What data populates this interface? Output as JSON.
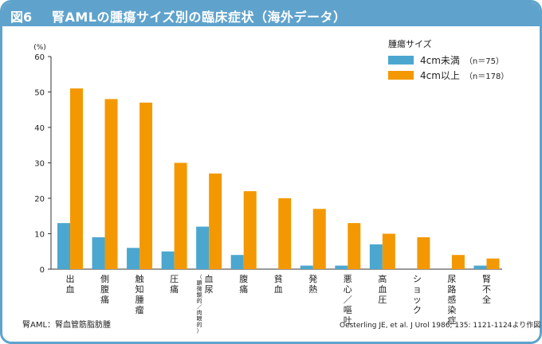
{
  "figure_label": "図6",
  "title": "腎AMLの腫瘍サイズ別の臨床症状（海外データ）",
  "colors": {
    "frame": "#5fa3cc",
    "small": "#4ba7d0",
    "large": "#f39800",
    "axis": "#333333"
  },
  "legend": {
    "title": "腫瘍サイズ",
    "items": [
      {
        "label": "4cm未満",
        "n": "（n＝75）",
        "color": "#4ba7d0"
      },
      {
        "label": "4cm以上",
        "n": "（n＝178）",
        "color": "#f39800"
      }
    ]
  },
  "footnote": "腎AML：腎血管筋脂肪腫",
  "source": "Oesterling JE, et al. J Urol 1986; 135: 1121-1124より作図",
  "chart_data": {
    "type": "bar",
    "ylabel": "(%)",
    "ylim": [
      0,
      60
    ],
    "yticks": [
      "0",
      "10",
      "20",
      "30",
      "40",
      "50",
      "60"
    ],
    "categories": [
      {
        "label": "出血"
      },
      {
        "label": "側腹痛"
      },
      {
        "label": "触知腫瘤"
      },
      {
        "label": "圧痛"
      },
      {
        "label": "血尿",
        "sub": "（顕微鏡的／肉眼的）"
      },
      {
        "label": "腹痛"
      },
      {
        "label": "貧血"
      },
      {
        "label": "発熱"
      },
      {
        "label": "悪心／嘔吐"
      },
      {
        "label": "高血圧"
      },
      {
        "label": "ショック"
      },
      {
        "label": "尿路感染症"
      },
      {
        "label": "腎不全"
      }
    ],
    "series": [
      {
        "name": "4cm未満",
        "values": [
          13,
          9,
          6,
          5,
          12,
          4,
          0,
          1,
          1,
          7,
          0,
          0,
          1
        ]
      },
      {
        "name": "4cm以上",
        "values": [
          51,
          48,
          47,
          30,
          27,
          22,
          20,
          17,
          13,
          10,
          9,
          4,
          3
        ]
      }
    ]
  }
}
